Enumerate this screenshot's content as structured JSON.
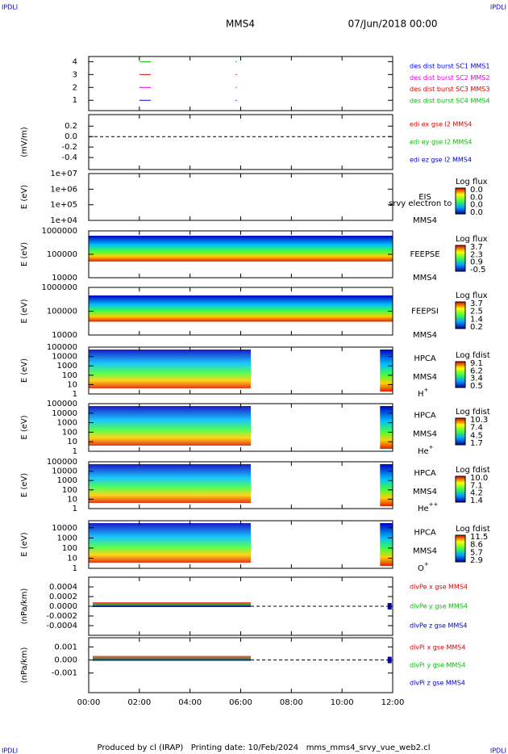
{
  "header": {
    "corner_left": "IPDLI",
    "corner_right": "IPDLI",
    "title": "MMS4",
    "date": "07/Jun/2018 00:00"
  },
  "footer": {
    "text": "Produced by cl (IRAP)   Printing date: 10/Feb/2024   mms_mms4_srvy_vue_web2.cl",
    "corner_left": "IPDLI",
    "corner_right": "IPDLI"
  },
  "xaxis": {
    "xlim": [
      0,
      12
    ],
    "xticks": [
      {
        "value": 0,
        "label": "00:00"
      },
      {
        "value": 2,
        "label": "02:00"
      },
      {
        "value": 4,
        "label": "04:00"
      },
      {
        "value": 6,
        "label": "06:00"
      },
      {
        "value": 8,
        "label": "08:00"
      },
      {
        "value": 10,
        "label": "10:00"
      },
      {
        "value": 12,
        "label": "12:00"
      }
    ]
  },
  "panels": [
    {
      "ylim": [
        0.2,
        4.4
      ],
      "yticks": [
        1,
        2,
        3,
        4
      ],
      "legend": [
        {
          "name": "des dist burst SC1 MMS1",
          "color": "#0000ff"
        },
        {
          "name": "des dist burst SC2 MMS2",
          "color": "#e000e0"
        },
        {
          "name": "des dist burst SC3 MMS3",
          "color": "#e00000"
        },
        {
          "name": "des dist burst SC4 MMS4",
          "color": "#00c000"
        }
      ]
    },
    {
      "ylabel": "(mV/m)",
      "ylim": [
        -0.63,
        0.42
      ],
      "yticks": [
        0.2,
        {
          "value": 0,
          "label": "0.0"
        },
        -0.2,
        -0.4
      ],
      "legend": [
        {
          "name": "edi ex gse l2 MMS4",
          "color": "#e00000"
        },
        {
          "name": "edi ey gse l2 MMS4",
          "color": "#00c000"
        },
        {
          "name": "edi ez gse l2 MMS4",
          "color": "#0000c0"
        }
      ]
    },
    {
      "ylabel": "E (eV)",
      "log": true,
      "ylim": [
        10000,
        10000000
      ],
      "yticks": [
        {
          "value": 10000000,
          "label": "1e+07"
        },
        {
          "value": 1000000,
          "label": "1e+06"
        },
        {
          "value": 100000,
          "label": "1e+05"
        },
        {
          "value": 10000,
          "label": "1e+04"
        }
      ],
      "labels": [
        "EIS",
        "MMS4"
      ],
      "overlay": "srvy electron to",
      "colorbar": {
        "title": "Log flux",
        "labels": [
          "0.0",
          "0.0",
          "0.0",
          "0.0"
        ]
      }
    },
    {
      "ylabel": "E (eV)",
      "log": true,
      "ylim": [
        10000,
        1000000
      ],
      "yticks": [
        1000000,
        100000,
        10000
      ],
      "labels": [
        "FEEPSE",
        "MMS4"
      ],
      "colorbar": {
        "title": "Log flux",
        "labels": [
          "3.7",
          "2.3",
          "0.9",
          "-0.5"
        ]
      }
    },
    {
      "ylabel": "E (eV)",
      "log": true,
      "ylim": [
        10000,
        1000000
      ],
      "yticks": [
        1000000,
        100000,
        10000
      ],
      "labels": [
        "FEEPSI",
        "MMS4"
      ],
      "colorbar": {
        "title": "Log flux",
        "labels": [
          "3.7",
          "2.5",
          "1.4",
          "0.2"
        ]
      }
    },
    {
      "ylabel": "E (eV)",
      "log": true,
      "ylim": [
        1,
        100000
      ],
      "yticks": [
        100000,
        10000,
        1000,
        100,
        10,
        1
      ],
      "labels": [
        "HPCA",
        "MMS4"
      ],
      "species": {
        "base": "H",
        "sup": "+"
      },
      "colorbar": {
        "title": "Log fdist",
        "labels": [
          "9.1",
          "6.2",
          "3.4",
          "0.5"
        ]
      }
    },
    {
      "ylabel": "E (eV)",
      "log": true,
      "ylim": [
        1,
        100000
      ],
      "yticks": [
        100000,
        10000,
        1000,
        100,
        10,
        1
      ],
      "labels": [
        "HPCA",
        "MMS4"
      ],
      "species": {
        "base": "He",
        "sup": "+"
      },
      "colorbar": {
        "title": "Log fdist",
        "labels": [
          "10.3",
          "7.4",
          "4.5",
          "1.7"
        ]
      }
    },
    {
      "ylabel": "E (eV)",
      "log": true,
      "ylim": [
        1,
        100000
      ],
      "yticks": [
        100000,
        10000,
        1000,
        100,
        10,
        1
      ],
      "labels": [
        "HPCA",
        "MMS4"
      ],
      "species": {
        "base": "He",
        "sup": "++"
      },
      "colorbar": {
        "title": "Log fdist",
        "labels": [
          "10.0",
          "7.1",
          "4.2",
          "1.4"
        ]
      }
    },
    {
      "ylabel": "E (eV)",
      "log": true,
      "ylim": [
        1,
        50000
      ],
      "yticks": [
        10000,
        1000,
        100,
        10,
        1
      ],
      "labels": [
        "HPCA",
        "MMS4"
      ],
      "species": {
        "base": "O",
        "sup": "+"
      },
      "colorbar": {
        "title": "Log fdist",
        "labels": [
          "11.5",
          "8.6",
          "5.7",
          "2.9"
        ]
      }
    },
    {
      "ylabel": "(nPa/km)",
      "ylim": [
        -0.0006,
        0.0006
      ],
      "yticks": [
        0.0004,
        0.0002,
        {
          "value": 0,
          "label": "0.0000"
        },
        -0.0002,
        -0.0004
      ],
      "legend": [
        {
          "name": "dlvPe x gse MMS4",
          "color": "#e00000"
        },
        {
          "name": "dlvPe y gse MMS4",
          "color": "#00c000"
        },
        {
          "name": "dlvPe z gse MMS4",
          "color": "#0000c0"
        }
      ]
    },
    {
      "ylabel": "(nPa/km)",
      "ylim": [
        -0.0025,
        0.0017
      ],
      "yticks": [
        0.001,
        {
          "value": 0,
          "label": "0.000"
        },
        -0.001
      ],
      "legend": [
        {
          "name": "dlvPi x gse MMS4",
          "color": "#e00000"
        },
        {
          "name": "dlvPi y gse MMS4",
          "color": "#00c000"
        },
        {
          "name": "dlvPi z gse MMS4",
          "color": "#0000c0"
        }
      ]
    }
  ]
}
